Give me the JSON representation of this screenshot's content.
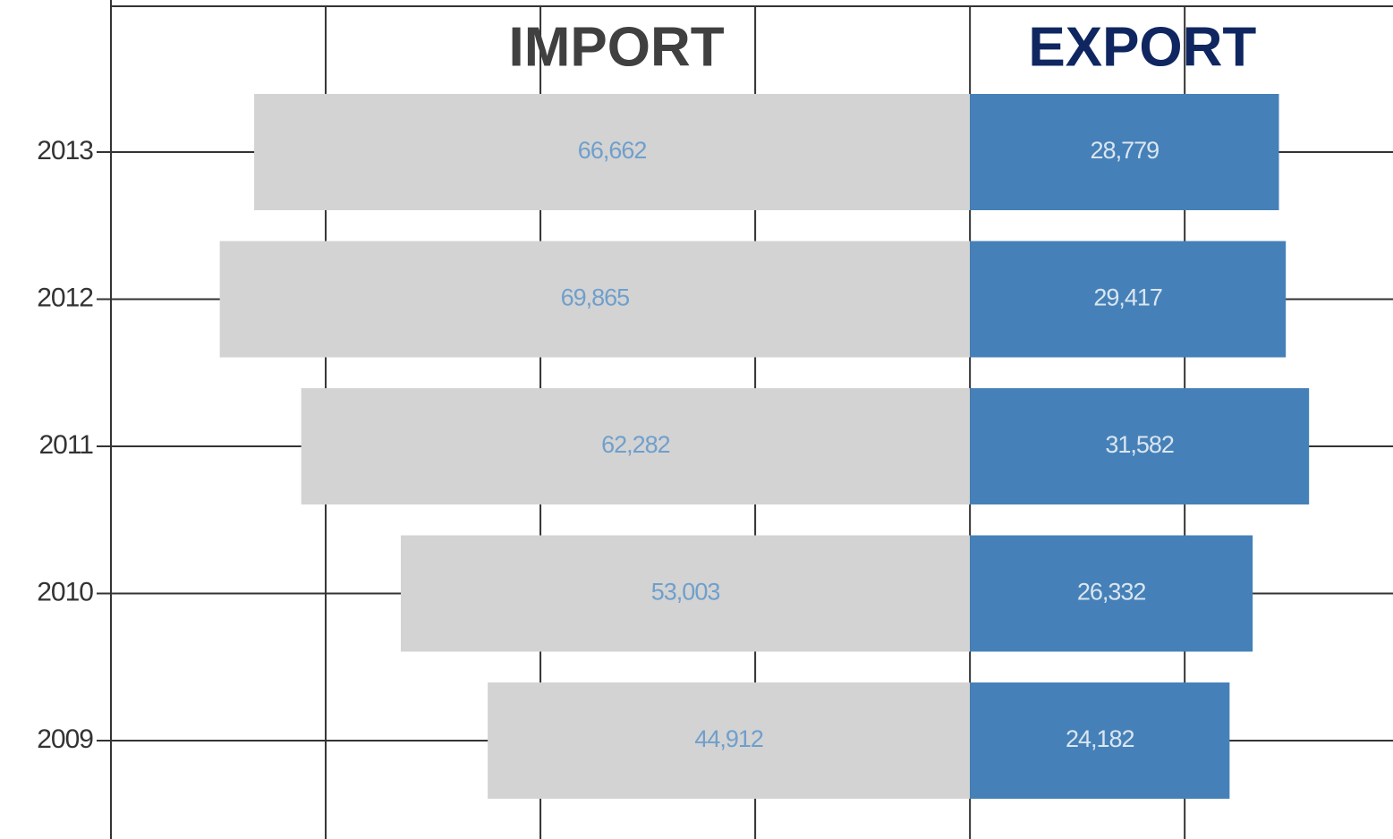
{
  "chart_data": {
    "type": "diverging_bar",
    "categories": [
      "2013",
      "2012",
      "2011",
      "2010",
      "2009"
    ],
    "series": [
      {
        "name": "IMPORT",
        "side": "left",
        "color": "#d3d3d3",
        "name_color": "#404040",
        "label_color": "#6f9fcc",
        "values": [
          66662,
          69865,
          62282,
          53003,
          44912
        ],
        "value_labels": [
          "66,662",
          "69,865",
          "62,282",
          "53,003",
          "44,912"
        ]
      },
      {
        "name": "EXPORT",
        "side": "right",
        "color": "#4581b8",
        "name_color": "#0f2660",
        "label_color": "#dbe5f0",
        "values": [
          28779,
          29417,
          31582,
          26332,
          24182
        ],
        "value_labels": [
          "28,779",
          "29,417",
          "31,582",
          "26,332",
          "24,182"
        ]
      }
    ],
    "xlim": [
      -80000,
      39400
    ],
    "xticks": [
      -80000,
      -60000,
      -40000,
      -20000,
      0,
      20000
    ],
    "xtick_labels": false,
    "grid": true
  }
}
